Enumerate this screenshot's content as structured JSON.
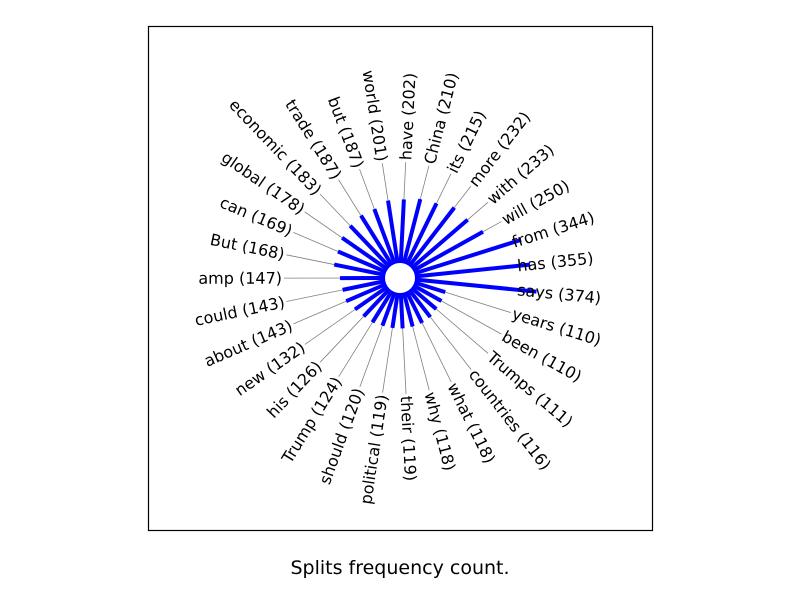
{
  "caption": "Splits frequency count.",
  "chart_data": {
    "type": "radial-bar",
    "bar_color": "#0000ff",
    "leader_color": "#808080",
    "categories": [
      "says",
      "has",
      "from",
      "will",
      "with",
      "more",
      "its",
      "China",
      "have",
      "world",
      "but",
      "trade",
      "economic",
      "global",
      "can",
      "But",
      "amp",
      "could",
      "about",
      "new",
      "his",
      "Trump",
      "should",
      "political",
      "their",
      "why",
      "what",
      "countries",
      "Trumps",
      "been",
      "years"
    ],
    "values": [
      374,
      355,
      344,
      250,
      233,
      232,
      215,
      210,
      202,
      201,
      187,
      187,
      183,
      178,
      169,
      168,
      147,
      143,
      143,
      132,
      126,
      124,
      120,
      119,
      119,
      118,
      118,
      116,
      111,
      110,
      110
    ],
    "labels": [
      "says (374)",
      "has (355)",
      "from (344)",
      "will (250)",
      "with (233)",
      "more (232)",
      "its (215)",
      "China (210)",
      "have (202)",
      "world (201)",
      "but (187)",
      "trade (187)",
      "economic (183)",
      "global (178)",
      "can (169)",
      "But (168)",
      "amp (147)",
      "could (143)",
      "about (143)",
      "new (132)",
      "his (126)",
      "Trump (124)",
      "should (120)",
      "political (119)",
      "their (119)",
      "why (118)",
      "what (118)",
      "countries (116)",
      "Trumps (111)",
      "been (110)",
      "years (110)"
    ]
  }
}
